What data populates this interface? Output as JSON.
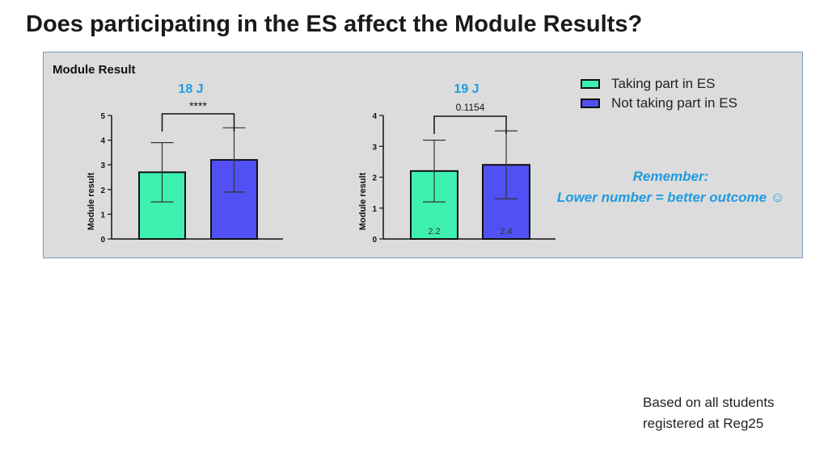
{
  "title": "Does participating in the ES affect the Module Results?",
  "panel_label": "Module Result",
  "legend": [
    {
      "label": "Taking part in ES",
      "color": "#3ef0b0"
    },
    {
      "label": "Not taking part in ES",
      "color": "#5050f5"
    }
  ],
  "remember": {
    "line1": "Remember:",
    "line2": "Lower number =  better outcome ☺"
  },
  "footnote": {
    "line1": "Based on all students",
    "line2": "registered at Reg25"
  },
  "colors": {
    "cohort_title": "#1f9be0",
    "bar_es": "#3ef0b0",
    "bar_no_es": "#5050f5",
    "panel_bg": "#dcdcdc"
  },
  "chart_data": [
    {
      "type": "bar",
      "cohort": "18 J",
      "ylabel": "Module result",
      "ylim": [
        0,
        5
      ],
      "yticks": [
        0,
        1,
        2,
        3,
        4,
        5
      ],
      "series": [
        {
          "name": "Taking part in ES",
          "value": 2.7,
          "err_low": 1.5,
          "err_high": 3.9,
          "data_label": ""
        },
        {
          "name": "Not taking part in ES",
          "value": 3.2,
          "err_low": 1.9,
          "err_high": 4.5,
          "data_label": ""
        }
      ],
      "significance": "****"
    },
    {
      "type": "bar",
      "cohort": "19 J",
      "ylabel": "Module result",
      "ylim": [
        0,
        4
      ],
      "yticks": [
        0,
        1,
        2,
        3,
        4
      ],
      "series": [
        {
          "name": "Taking part in ES",
          "value": 2.2,
          "err_low": 1.2,
          "err_high": 3.2,
          "data_label": "2.2"
        },
        {
          "name": "Not taking part in ES",
          "value": 2.4,
          "err_low": 1.3,
          "err_high": 3.5,
          "data_label": "2.4"
        }
      ],
      "significance": "0.1154"
    }
  ]
}
